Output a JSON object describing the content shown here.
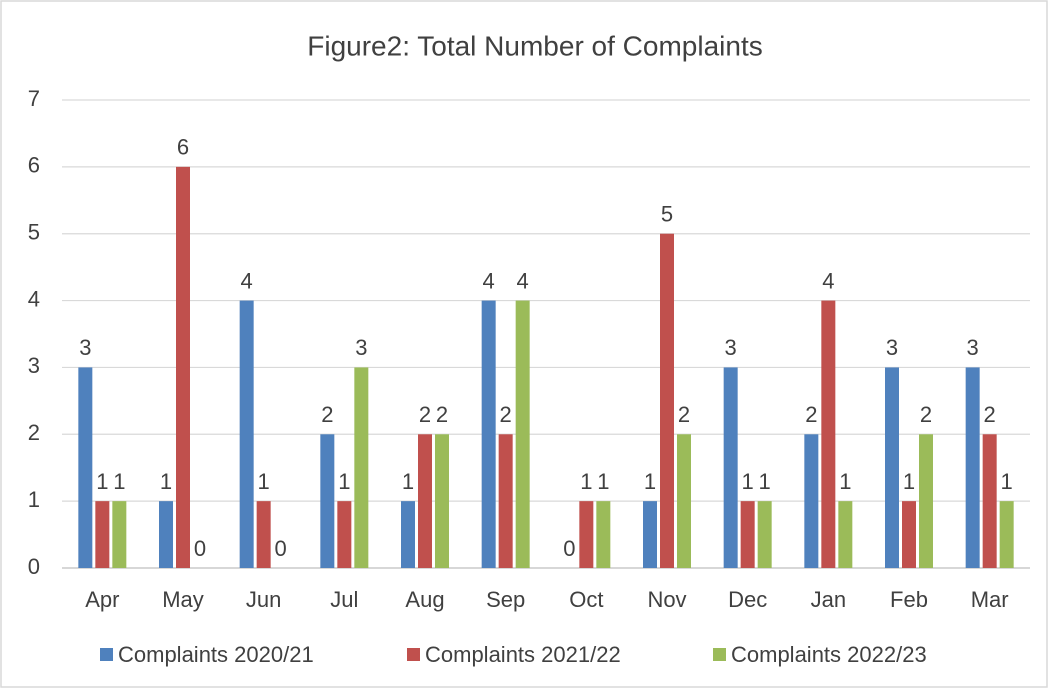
{
  "chart_data": {
    "type": "bar",
    "title": "Figure2: Total Number of Complaints",
    "categories": [
      "Apr",
      "May",
      "Jun",
      "Jul",
      "Aug",
      "Sep",
      "Oct",
      "Nov",
      "Dec",
      "Jan",
      "Feb",
      "Mar"
    ],
    "series": [
      {
        "name": "Complaints 2020/21",
        "color": "#4f81bd",
        "values": [
          3,
          1,
          4,
          2,
          1,
          4,
          0,
          1,
          3,
          2,
          3,
          3
        ]
      },
      {
        "name": "Complaints 2021/22",
        "color": "#c0504d",
        "values": [
          1,
          6,
          1,
          1,
          2,
          2,
          1,
          5,
          1,
          4,
          1,
          2
        ]
      },
      {
        "name": "Complaints 2022/23",
        "color": "#9bbb59",
        "values": [
          1,
          0,
          0,
          3,
          2,
          4,
          1,
          2,
          1,
          1,
          2,
          1
        ]
      }
    ],
    "ylim": [
      0,
      7
    ],
    "yticks": [
      0,
      1,
      2,
      3,
      4,
      5,
      6,
      7
    ],
    "grid": true,
    "legend": "bottom"
  }
}
